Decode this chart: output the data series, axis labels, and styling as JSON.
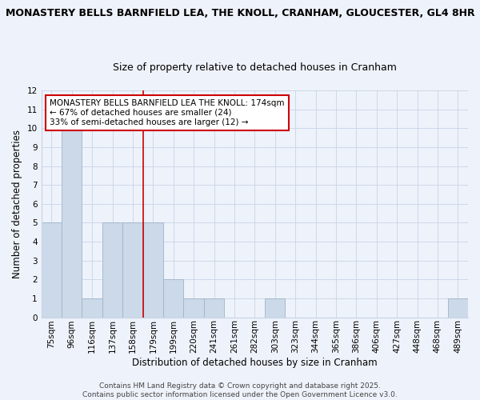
{
  "title_line1": "MONASTERY BELLS BARNFIELD LEA, THE KNOLL, CRANHAM, GLOUCESTER, GL4 8HR",
  "title_line2": "Size of property relative to detached houses in Cranham",
  "xlabel": "Distribution of detached houses by size in Cranham",
  "ylabel": "Number of detached properties",
  "categories": [
    "75sqm",
    "96sqm",
    "116sqm",
    "137sqm",
    "158sqm",
    "179sqm",
    "199sqm",
    "220sqm",
    "241sqm",
    "261sqm",
    "282sqm",
    "303sqm",
    "323sqm",
    "344sqm",
    "365sqm",
    "386sqm",
    "406sqm",
    "427sqm",
    "448sqm",
    "468sqm",
    "489sqm"
  ],
  "values": [
    5,
    10,
    1,
    5,
    5,
    5,
    2,
    1,
    1,
    0,
    0,
    1,
    0,
    0,
    0,
    0,
    0,
    0,
    0,
    0,
    1
  ],
  "bar_color": "#ccd9e8",
  "bar_edge_color": "#9db5cc",
  "highlight_bar_index": 5,
  "highlight_color": "#cc0000",
  "vline_x": 4.5,
  "vline_color": "#cc0000",
  "annotation_text": "MONASTERY BELLS BARNFIELD LEA THE KNOLL: 174sqm\n← 67% of detached houses are smaller (24)\n33% of semi-detached houses are larger (12) →",
  "annotation_box_color": "#ffffff",
  "annotation_box_edge_color": "#cc0000",
  "ylim": [
    0,
    12
  ],
  "yticks": [
    0,
    1,
    2,
    3,
    4,
    5,
    6,
    7,
    8,
    9,
    10,
    11,
    12
  ],
  "footer_text": "Contains HM Land Registry data © Crown copyright and database right 2025.\nContains public sector information licensed under the Open Government Licence v3.0.",
  "background_color": "#eef2fa",
  "grid_color": "#c8d4e8",
  "title_fontsize": 9,
  "subtitle_fontsize": 9,
  "axis_label_fontsize": 8.5,
  "tick_fontsize": 7.5,
  "annotation_fontsize": 7.5,
  "footer_fontsize": 6.5
}
